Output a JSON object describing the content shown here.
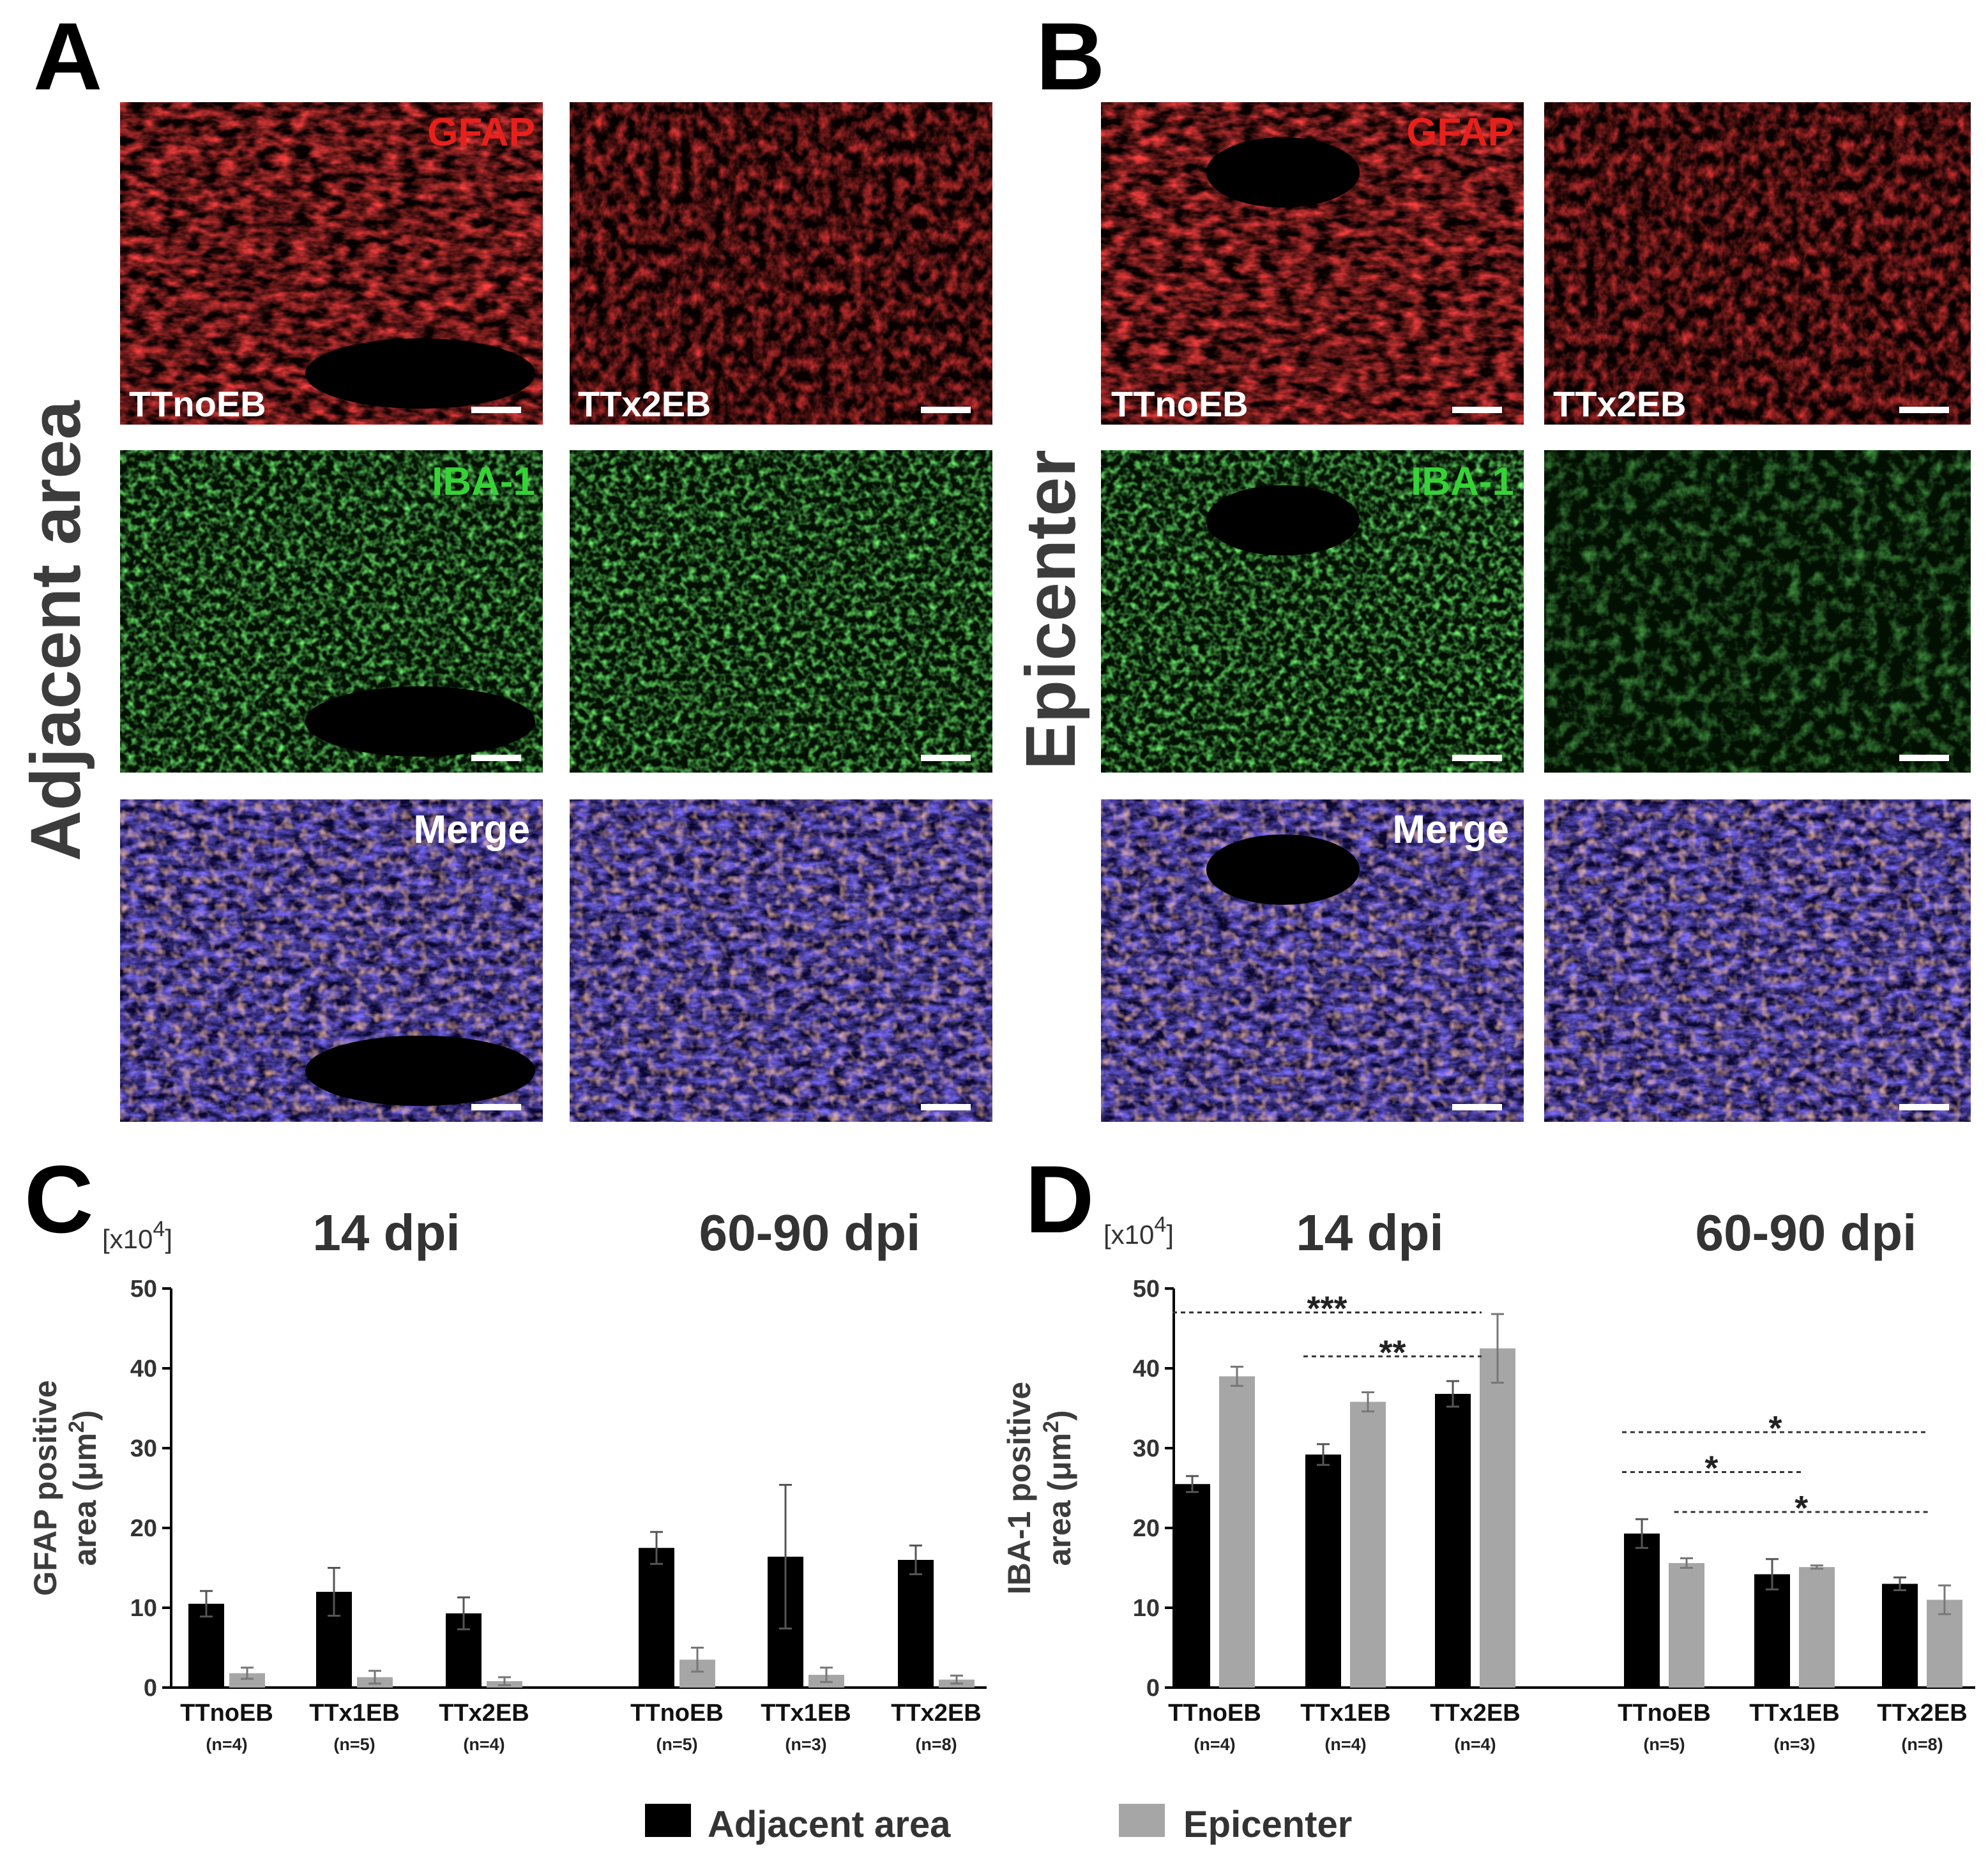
{
  "panels": {
    "A": "A",
    "B": "B",
    "C": "C",
    "D": "D"
  },
  "row_labels": {
    "adjacent": "Adjacent area",
    "epicenter": "Epicenter"
  },
  "stains": {
    "gfap": "GFAP",
    "iba1": "IBA-1",
    "merge": "Merge"
  },
  "conditions": {
    "left": "TTnoEB",
    "right": "TTx2EB"
  },
  "colors": {
    "gfap": "#e8201c",
    "iba1": "#36d336",
    "adjacent_bar": "#000000",
    "epicenter_bar": "#a6a6a6"
  },
  "legend": {
    "adjacent": "Adjacent area",
    "epicenter": "Epicenter"
  },
  "chart_data": [
    {
      "type": "bar",
      "panel": "C",
      "ylabel_line1": "GFAP positive",
      "ylabel_line2": "area (μm",
      "ylabel_sup": "2",
      "ylabel_close": ")",
      "multiplier": "[x10",
      "multiplier_sup": "4",
      "multiplier_close": "]",
      "ylim": [
        0,
        50
      ],
      "yticks": [
        "0",
        "10",
        "20",
        "30",
        "40",
        "50"
      ],
      "groups": [
        "14 dpi",
        "60-90 dpi"
      ],
      "categories": [
        "TTnoEB",
        "TTx1EB",
        "TTx2EB",
        "TTnoEB",
        "TTx1EB",
        "TTx2EB"
      ],
      "n_labels": [
        "(n=4)",
        "(n=5)",
        "(n=4)",
        "(n=5)",
        "(n=3)",
        "(n=8)"
      ],
      "series": [
        {
          "name": "Adjacent area",
          "values": [
            10.5,
            12.0,
            9.3,
            17.5,
            16.4,
            16.0
          ],
          "errors": [
            1.6,
            3.0,
            2.0,
            2.0,
            9.0,
            1.8
          ]
        },
        {
          "name": "Epicenter",
          "values": [
            1.8,
            1.3,
            0.8,
            3.5,
            1.6,
            1.0
          ],
          "errors": [
            0.7,
            0.8,
            0.5,
            1.5,
            0.9,
            0.5
          ]
        }
      ],
      "significance": []
    },
    {
      "type": "bar",
      "panel": "D",
      "ylabel_line1": "IBA-1 positive",
      "ylabel_line2": "area (μm",
      "ylabel_sup": "2",
      "ylabel_close": ")",
      "multiplier": "[x10",
      "multiplier_sup": "4",
      "multiplier_close": "]",
      "ylim": [
        0,
        50
      ],
      "yticks": [
        "0",
        "10",
        "20",
        "30",
        "40",
        "50"
      ],
      "groups": [
        "14 dpi",
        "60-90 dpi"
      ],
      "categories": [
        "TTnoEB",
        "TTx1EB",
        "TTx2EB",
        "TTnoEB",
        "TTx1EB",
        "TTx2EB"
      ],
      "n_labels": [
        "(n=4)",
        "(n=4)",
        "(n=4)",
        "(n=5)",
        "(n=3)",
        "(n=8)"
      ],
      "series": [
        {
          "name": "Adjacent area",
          "values": [
            25.5,
            29.2,
            36.8,
            19.3,
            14.2,
            13.0
          ],
          "errors": [
            1.0,
            1.3,
            1.6,
            1.8,
            1.9,
            0.8
          ]
        },
        {
          "name": "Epicenter",
          "values": [
            39.0,
            35.8,
            42.5,
            15.6,
            15.1,
            11.0
          ],
          "errors": [
            1.2,
            1.2,
            4.3,
            0.6,
            0.2,
            1.8
          ]
        }
      ],
      "significance": [
        {
          "label": "***",
          "y": 47,
          "from": 0,
          "to": 2
        },
        {
          "label": "**",
          "y": 41.5,
          "from": 1,
          "to": 2
        },
        {
          "label": "*",
          "y": 32,
          "from": 3,
          "to": 5
        },
        {
          "label": "*",
          "y": 27,
          "from": 3,
          "to": 4
        },
        {
          "label": "*",
          "y": 22,
          "from": 3.4,
          "to": 5.2
        }
      ]
    }
  ]
}
